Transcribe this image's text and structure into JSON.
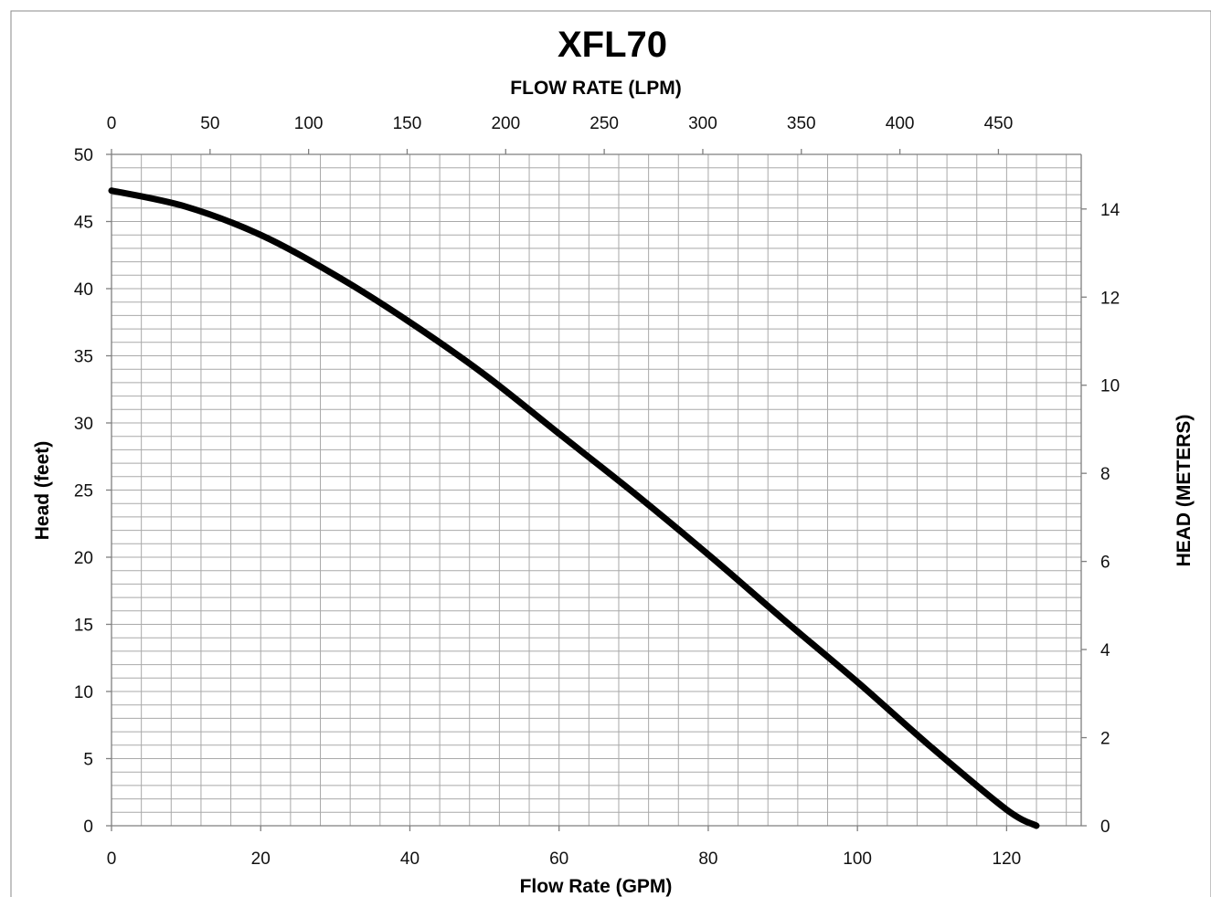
{
  "chart_data": {
    "type": "line",
    "title": "XFL70",
    "xlabel": "Flow Rate (GPM)",
    "ylabel": "Head (feet)",
    "x2label": "FLOW RATE (LPM)",
    "y2label": "HEAD (METERS)",
    "xlim": [
      0,
      130
    ],
    "ylim": [
      0,
      50
    ],
    "x2lim": [
      0,
      492
    ],
    "y2lim": [
      0,
      15.24
    ],
    "xticks": [
      0,
      20,
      40,
      60,
      80,
      100,
      120
    ],
    "yticks": [
      0,
      5,
      10,
      15,
      20,
      25,
      30,
      35,
      40,
      45,
      50
    ],
    "x2ticks": [
      0,
      50,
      100,
      150,
      200,
      250,
      300,
      350,
      400,
      450
    ],
    "y2ticks": [
      0,
      2,
      4,
      6,
      8,
      10,
      12,
      14
    ],
    "grid": true,
    "series": [
      {
        "color": "#000000",
        "x": [
          0,
          10,
          20,
          30,
          40,
          50,
          60,
          70,
          80,
          90,
          100,
          110,
          120,
          124
        ],
        "y": [
          47.3,
          46.1,
          44.0,
          41.0,
          37.5,
          33.6,
          29.2,
          24.8,
          20.2,
          15.4,
          10.7,
          5.8,
          1.2,
          0
        ]
      }
    ]
  }
}
